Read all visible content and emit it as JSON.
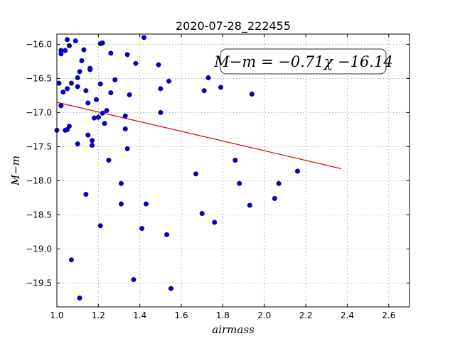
{
  "chart_data": {
    "type": "scatter",
    "title": "2020-07-28_222455",
    "xlabel": "airmass",
    "ylabel": "M−m",
    "xlim": [
      1.0,
      2.7
    ],
    "ylim": [
      -15.85,
      -19.85
    ],
    "y_inverted": true,
    "x_ticks": [
      1.0,
      1.2,
      1.4,
      1.6,
      1.8,
      2.0,
      2.2,
      2.4,
      2.6
    ],
    "x_tick_labels": [
      "1.0",
      "1.2",
      "1.4",
      "1.6",
      "1.8",
      "2.0",
      "2.2",
      "2.4",
      "2.6"
    ],
    "y_ticks": [
      -16.0,
      -16.5,
      -17.0,
      -17.5,
      -18.0,
      -18.5,
      -19.0,
      -19.5
    ],
    "y_tick_labels": [
      "−16.0",
      "−16.5",
      "−17.0",
      "−17.5",
      "−18.0",
      "−18.5",
      "−19.0",
      "−19.5"
    ],
    "grid": true,
    "annotation": "M−m = −0.71χ −16.14",
    "point_color": "#0000cc",
    "fit_color": "#dd0000",
    "fit": {
      "slope": -0.71,
      "intercept": -16.14,
      "x_range": [
        1.0,
        2.37
      ]
    },
    "series": [
      {
        "points": [
          [
            1.0,
            -17.26
          ],
          [
            1.01,
            -16.57
          ],
          [
            1.02,
            -16.9
          ],
          [
            1.02,
            -16.09
          ],
          [
            1.02,
            -16.14
          ],
          [
            1.03,
            -16.7
          ],
          [
            1.04,
            -17.26
          ],
          [
            1.04,
            -16.09
          ],
          [
            1.05,
            -17.25
          ],
          [
            1.05,
            -15.93
          ],
          [
            1.05,
            -16.65
          ],
          [
            1.06,
            -16.02
          ],
          [
            1.06,
            -17.2
          ],
          [
            1.07,
            -16.57
          ],
          [
            1.07,
            -19.16
          ],
          [
            1.09,
            -15.95
          ],
          [
            1.1,
            -17.46
          ],
          [
            1.1,
            -16.62
          ],
          [
            1.1,
            -16.49
          ],
          [
            1.11,
            -16.4
          ],
          [
            1.11,
            -19.72
          ],
          [
            1.12,
            -16.24
          ],
          [
            1.13,
            -16.08
          ],
          [
            1.14,
            -16.68
          ],
          [
            1.14,
            -18.2
          ],
          [
            1.15,
            -17.33
          ],
          [
            1.15,
            -16.86
          ],
          [
            1.16,
            -16.35
          ],
          [
            1.16,
            -16.37
          ],
          [
            1.17,
            -17.48
          ],
          [
            1.17,
            -17.41
          ],
          [
            1.18,
            -17.08
          ],
          [
            1.19,
            -16.81
          ],
          [
            1.2,
            -17.07
          ],
          [
            1.2,
            -17.07
          ],
          [
            1.21,
            -15.99
          ],
          [
            1.21,
            -16.58
          ],
          [
            1.21,
            -18.66
          ],
          [
            1.22,
            -15.98
          ],
          [
            1.22,
            -17.01
          ],
          [
            1.23,
            -17.16
          ],
          [
            1.24,
            -16.97
          ],
          [
            1.25,
            -17.7
          ],
          [
            1.26,
            -16.13
          ],
          [
            1.26,
            -16.71
          ],
          [
            1.28,
            -16.52
          ],
          [
            1.31,
            -18.04
          ],
          [
            1.31,
            -18.34
          ],
          [
            1.33,
            -17.05
          ],
          [
            1.33,
            -17.24
          ],
          [
            1.34,
            -16.15
          ],
          [
            1.34,
            -17.53
          ],
          [
            1.35,
            -16.74
          ],
          [
            1.37,
            -19.45
          ],
          [
            1.38,
            -16.28
          ],
          [
            1.41,
            -18.7
          ],
          [
            1.42,
            -15.9
          ],
          [
            1.43,
            -18.34
          ],
          [
            1.49,
            -16.3
          ],
          [
            1.5,
            -16.65
          ],
          [
            1.5,
            -17.0
          ],
          [
            1.53,
            -18.79
          ],
          [
            1.54,
            -16.54
          ],
          [
            1.55,
            -19.58
          ],
          [
            1.67,
            -17.9
          ],
          [
            1.7,
            -18.48
          ],
          [
            1.71,
            -16.68
          ],
          [
            1.73,
            -16.49
          ],
          [
            1.76,
            -18.61
          ],
          [
            1.79,
            -16.63
          ],
          [
            1.86,
            -17.7
          ],
          [
            1.88,
            -18.04
          ],
          [
            1.93,
            -18.36
          ],
          [
            1.94,
            -16.73
          ],
          [
            2.05,
            -18.26
          ],
          [
            2.07,
            -18.04
          ],
          [
            2.16,
            -17.86
          ]
        ]
      }
    ]
  }
}
